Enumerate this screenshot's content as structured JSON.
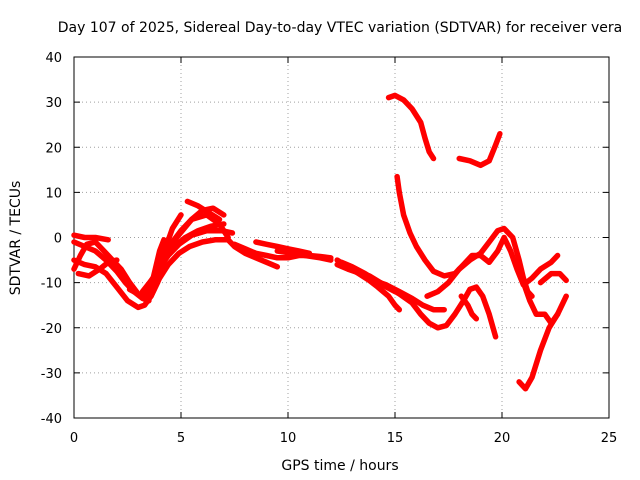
{
  "chart_data": {
    "type": "scatter",
    "title": "Day 107 of 2025, Sidereal Day-to-day VTEC variation (SDTVAR) for receiver vera",
    "xlabel": "GPS time / hours",
    "ylabel": "SDTVAR / TECUs",
    "xlim": [
      0,
      25
    ],
    "ylim": [
      -40,
      40
    ],
    "xticks": [
      "0",
      "5",
      "10",
      "15",
      "20",
      "25"
    ],
    "yticks": [
      "-40",
      "-30",
      "-20",
      "-10",
      "0",
      "10",
      "20",
      "30",
      "40"
    ],
    "grid": true,
    "color": "#ff0000",
    "series": [
      {
        "points": [
          [
            0.0,
            -7
          ],
          [
            0.3,
            -4
          ],
          [
            0.6,
            -1.5
          ],
          [
            1.0,
            -1
          ],
          [
            1.4,
            -3
          ],
          [
            1.8,
            -5
          ],
          [
            2.2,
            -7
          ],
          [
            2.6,
            -10
          ],
          [
            3.0,
            -12.5
          ],
          [
            3.3,
            -13
          ],
          [
            3.6,
            -11
          ],
          [
            3.8,
            -7
          ],
          [
            4.0,
            -3
          ],
          [
            4.2,
            -0.5
          ]
        ]
      },
      {
        "points": [
          [
            0.0,
            0.5
          ],
          [
            0.5,
            0
          ],
          [
            1.0,
            0
          ],
          [
            1.6,
            -0.5
          ]
        ]
      },
      {
        "points": [
          [
            0.0,
            -1
          ],
          [
            0.5,
            -2
          ],
          [
            1.0,
            -3
          ],
          [
            1.5,
            -5
          ],
          [
            2.0,
            -7.5
          ],
          [
            2.4,
            -10
          ],
          [
            2.8,
            -12
          ],
          [
            3.2,
            -13.5
          ],
          [
            3.5,
            -14
          ]
        ]
      },
      {
        "points": [
          [
            0.0,
            -5
          ],
          [
            0.5,
            -6
          ],
          [
            1.0,
            -6.5
          ],
          [
            1.5,
            -8
          ],
          [
            2.0,
            -11
          ],
          [
            2.5,
            -14
          ],
          [
            3.0,
            -15.5
          ],
          [
            3.3,
            -15
          ],
          [
            3.6,
            -13
          ],
          [
            3.9,
            -10
          ],
          [
            4.2,
            -5
          ],
          [
            4.6,
            -1
          ],
          [
            5.0,
            1.5
          ],
          [
            5.5,
            4
          ],
          [
            6.0,
            6
          ],
          [
            6.5,
            6.5
          ],
          [
            7.0,
            5
          ]
        ]
      },
      {
        "points": [
          [
            0.2,
            -8
          ],
          [
            0.7,
            -8.5
          ],
          [
            1.2,
            -7
          ],
          [
            1.6,
            -5.5
          ],
          [
            2.0,
            -5
          ]
        ]
      },
      {
        "points": [
          [
            2.6,
            -11.5
          ],
          [
            3.0,
            -12.5
          ],
          [
            3.5,
            -13
          ],
          [
            3.8,
            -10
          ],
          [
            4.3,
            -4
          ],
          [
            4.8,
            0
          ],
          [
            5.5,
            4
          ],
          [
            6.2,
            5
          ],
          [
            6.8,
            3
          ],
          [
            7.2,
            0
          ]
        ]
      },
      {
        "points": [
          [
            3.2,
            -12
          ],
          [
            3.7,
            -9
          ],
          [
            4.2,
            -5
          ],
          [
            4.7,
            -2
          ],
          [
            5.2,
            0
          ],
          [
            5.8,
            1.5
          ],
          [
            6.4,
            2.5
          ],
          [
            7.0,
            3
          ]
        ]
      },
      {
        "points": [
          [
            3.6,
            -13
          ],
          [
            4.0,
            -9
          ],
          [
            4.4,
            -6
          ],
          [
            4.9,
            -3.5
          ],
          [
            5.4,
            -2
          ],
          [
            6.0,
            -1
          ],
          [
            6.6,
            -0.5
          ],
          [
            7.2,
            -0.5
          ]
        ]
      },
      {
        "points": [
          [
            3.4,
            -11
          ],
          [
            3.9,
            -7.5
          ],
          [
            4.4,
            -4
          ],
          [
            4.9,
            -1.5
          ],
          [
            5.5,
            0.5
          ],
          [
            6.2,
            1.5
          ],
          [
            6.9,
            1.5
          ],
          [
            7.4,
            1
          ]
        ]
      },
      {
        "points": [
          [
            3.9,
            -9
          ],
          [
            4.3,
            -2
          ],
          [
            4.6,
            2
          ],
          [
            5.0,
            5
          ]
        ]
      },
      {
        "points": [
          [
            5.3,
            8
          ],
          [
            5.8,
            7
          ],
          [
            6.3,
            5.5
          ],
          [
            6.8,
            4
          ]
        ]
      },
      {
        "points": [
          [
            7.2,
            -0.5
          ],
          [
            7.5,
            -2
          ],
          [
            8.0,
            -3.5
          ],
          [
            8.5,
            -4.5
          ],
          [
            9.0,
            -5.5
          ],
          [
            9.5,
            -6.5
          ]
        ]
      },
      {
        "points": [
          [
            7.5,
            -1.5
          ],
          [
            8.0,
            -2.5
          ],
          [
            8.5,
            -3.5
          ],
          [
            9.0,
            -4
          ],
          [
            9.5,
            -4.5
          ],
          [
            10.0,
            -4.5
          ],
          [
            10.5,
            -4
          ],
          [
            11.0,
            -4
          ],
          [
            11.5,
            -4.2
          ],
          [
            12.0,
            -4.5
          ]
        ]
      },
      {
        "points": [
          [
            8.5,
            -1
          ],
          [
            9.0,
            -1.5
          ],
          [
            9.5,
            -2
          ],
          [
            10.0,
            -2.5
          ],
          [
            10.5,
            -3
          ],
          [
            11.0,
            -3.5
          ]
        ]
      },
      {
        "points": [
          [
            9.5,
            -3
          ],
          [
            10.2,
            -3.5
          ],
          [
            10.8,
            -4
          ],
          [
            11.5,
            -4.5
          ],
          [
            12.0,
            -5
          ]
        ]
      },
      {
        "points": [
          [
            12.3,
            -5
          ],
          [
            12.8,
            -6.5
          ],
          [
            13.3,
            -8
          ],
          [
            13.8,
            -9.5
          ],
          [
            14.2,
            -11
          ],
          [
            14.7,
            -13
          ],
          [
            15.0,
            -15
          ],
          [
            15.2,
            -16
          ]
        ]
      },
      {
        "points": [
          [
            12.3,
            -6
          ],
          [
            12.8,
            -7
          ],
          [
            13.4,
            -8
          ],
          [
            14.0,
            -9.5
          ],
          [
            14.6,
            -10.5
          ],
          [
            15.2,
            -12
          ],
          [
            15.8,
            -13.5
          ],
          [
            16.3,
            -15
          ],
          [
            16.8,
            -16
          ],
          [
            17.3,
            -16
          ]
        ]
      },
      {
        "points": [
          [
            12.5,
            -5.5
          ],
          [
            13.0,
            -6.5
          ],
          [
            13.6,
            -8
          ],
          [
            14.1,
            -9.5
          ],
          [
            14.6,
            -11
          ],
          [
            15.0,
            -12
          ]
        ]
      },
      {
        "points": [
          [
            13.0,
            -7
          ],
          [
            13.8,
            -8.5
          ],
          [
            14.5,
            -10.5
          ],
          [
            15.2,
            -12.5
          ],
          [
            15.8,
            -14.5
          ],
          [
            16.2,
            -17
          ],
          [
            16.6,
            -19
          ],
          [
            17.0,
            -20
          ],
          [
            17.4,
            -19.5
          ],
          [
            17.8,
            -17
          ],
          [
            18.2,
            -14
          ],
          [
            18.5,
            -11.5
          ],
          [
            18.8,
            -11
          ],
          [
            19.1,
            -13
          ],
          [
            19.4,
            -17
          ],
          [
            19.7,
            -22
          ]
        ]
      },
      {
        "points": [
          [
            14.7,
            31
          ],
          [
            15.0,
            31.5
          ],
          [
            15.4,
            30.5
          ],
          [
            15.8,
            28.5
          ],
          [
            16.2,
            25.5
          ],
          [
            16.4,
            22
          ],
          [
            16.6,
            19
          ],
          [
            16.8,
            17.5
          ]
        ]
      },
      {
        "points": [
          [
            15.1,
            13.5
          ],
          [
            15.2,
            10
          ],
          [
            15.4,
            5
          ],
          [
            15.7,
            1
          ],
          [
            16.0,
            -2
          ],
          [
            16.4,
            -5
          ],
          [
            16.8,
            -7.5
          ],
          [
            17.3,
            -8.5
          ],
          [
            17.8,
            -8
          ],
          [
            18.2,
            -6
          ],
          [
            18.6,
            -4
          ],
          [
            19.0,
            -4
          ],
          [
            19.4,
            -5.5
          ],
          [
            19.8,
            -3
          ],
          [
            20.1,
            0
          ],
          [
            20.4,
            -3
          ],
          [
            20.7,
            -7
          ],
          [
            21.0,
            -10.5
          ],
          [
            21.4,
            -9
          ],
          [
            21.8,
            -7
          ],
          [
            22.3,
            -5.5
          ],
          [
            22.6,
            -4
          ]
        ]
      },
      {
        "points": [
          [
            16.5,
            -13
          ],
          [
            17.0,
            -12
          ],
          [
            17.5,
            -10
          ],
          [
            18.0,
            -7
          ],
          [
            18.5,
            -5
          ],
          [
            19.0,
            -3.5
          ],
          [
            19.4,
            -1
          ],
          [
            19.8,
            1.5
          ],
          [
            20.1,
            2
          ],
          [
            20.5,
            0
          ],
          [
            20.8,
            -5
          ],
          [
            21.0,
            -9
          ],
          [
            21.2,
            -12
          ],
          [
            21.4,
            -13
          ]
        ]
      },
      {
        "points": [
          [
            18.0,
            17.5
          ],
          [
            18.5,
            17
          ],
          [
            19.0,
            16
          ],
          [
            19.4,
            17
          ],
          [
            19.7,
            20.5
          ],
          [
            19.9,
            23
          ]
        ]
      },
      {
        "points": [
          [
            18.1,
            -13
          ],
          [
            18.4,
            -15
          ],
          [
            18.6,
            -17
          ],
          [
            18.8,
            -18
          ]
        ]
      },
      {
        "points": [
          [
            21.0,
            -10
          ],
          [
            21.3,
            -14
          ],
          [
            21.6,
            -17
          ],
          [
            22.0,
            -17
          ],
          [
            22.3,
            -19
          ],
          [
            22.6,
            -17
          ]
        ]
      },
      {
        "points": [
          [
            20.8,
            -32
          ],
          [
            21.1,
            -33.5
          ],
          [
            21.4,
            -31
          ],
          [
            21.8,
            -25
          ],
          [
            22.2,
            -20
          ],
          [
            22.6,
            -17
          ],
          [
            23.0,
            -13
          ]
        ]
      },
      {
        "points": [
          [
            21.8,
            -10
          ],
          [
            22.3,
            -8
          ],
          [
            22.7,
            -8
          ],
          [
            23.0,
            -9.5
          ]
        ]
      }
    ]
  }
}
